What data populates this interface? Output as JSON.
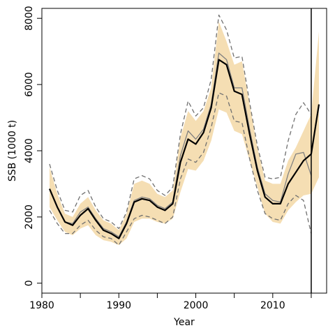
{
  "chart_data": {
    "type": "line",
    "xlabel": "Year",
    "ylabel": "SSB (1000 t)",
    "xlim": [
      1980,
      2017
    ],
    "ylim": [
      -300,
      8300
    ],
    "x_ticks": [
      1980,
      1990,
      2000,
      2010
    ],
    "x_ticks_minor": [
      1985,
      1995,
      2005,
      2015
    ],
    "y_ticks": [
      0,
      2000,
      4000,
      6000,
      8000
    ],
    "grid": false,
    "colors": {
      "band": "#f5deb3",
      "estimate": "#000000",
      "retro": "#808080",
      "retro_ci": "#707070",
      "vline": "#000000"
    },
    "vertical_line_x": 2015,
    "band": {
      "x": [
        1981,
        1982,
        1983,
        1984,
        1985,
        1986,
        1987,
        1988,
        1989,
        1990,
        1991,
        1992,
        1993,
        1994,
        1995,
        1996,
        1997,
        1998,
        1999,
        2000,
        2001,
        2002,
        2003,
        2004,
        2005,
        2006,
        2007,
        2008,
        2009,
        2010,
        2011,
        2012,
        2013,
        2014,
        2015,
        2016
      ],
      "lower": [
        2300,
        1900,
        1550,
        1450,
        1650,
        1750,
        1450,
        1300,
        1250,
        1150,
        1350,
        1850,
        1950,
        1950,
        1850,
        1800,
        1950,
        2750,
        3450,
        3400,
        3700,
        4300,
        5250,
        5150,
        4600,
        4500,
        3700,
        2900,
        2100,
        1850,
        1800,
        2200,
        2450,
        2650,
        2700,
        3200
      ],
      "upper": [
        3500,
        2700,
        2100,
        2000,
        2400,
        2600,
        2200,
        1900,
        1800,
        1600,
        2100,
        3000,
        3100,
        3000,
        2700,
        2600,
        2800,
        4400,
        5200,
        4900,
        5200,
        5900,
        7900,
        7300,
        6600,
        6700,
        5400,
        4100,
        3100,
        3000,
        3000,
        3700,
        4100,
        4600,
        5100,
        7600
      ]
    },
    "series": [
      {
        "x": [
          1981,
          1982,
          1983,
          1984,
          1985,
          1986,
          1987,
          1988,
          1989,
          1990,
          1991,
          1992,
          1993,
          1994,
          1995,
          1996,
          1997,
          1998,
          1999,
          2000,
          2001,
          2002,
          2003,
          2004,
          2005,
          2006,
          2007,
          2008,
          2009,
          2010,
          2011,
          2012,
          2013,
          2014,
          2015,
          2016
        ],
        "values": [
          2850,
          2300,
          1850,
          1750,
          2050,
          2250,
          1900,
          1600,
          1500,
          1350,
          1800,
          2450,
          2550,
          2500,
          2300,
          2200,
          2400,
          3650,
          4350,
          4200,
          4550,
          5300,
          6750,
          6600,
          5800,
          5700,
          4500,
          3400,
          2600,
          2400,
          2400,
          3000,
          3350,
          3700,
          3900,
          5400
        ],
        "style": "estimate"
      },
      {
        "x": [
          1981,
          1982,
          1983,
          1984,
          1985,
          1986,
          1987,
          1988,
          1989,
          1990,
          1991,
          1992,
          1993,
          1994,
          1995,
          1996,
          1997,
          1998,
          1999,
          2000,
          2001,
          2002,
          2003,
          2004,
          2005,
          2006,
          2007,
          2008,
          2009,
          2010,
          2011,
          2012,
          2013,
          2014,
          2015
        ],
        "values": [
          2850,
          2300,
          1850,
          1800,
          2150,
          2300,
          1950,
          1650,
          1550,
          1400,
          1850,
          2500,
          2600,
          2550,
          2350,
          2250,
          2450,
          3850,
          4600,
          4350,
          4650,
          5400,
          6950,
          6750,
          5900,
          5900,
          4650,
          3500,
          2700,
          2500,
          2450,
          3300,
          3900,
          3950,
          3250
        ],
        "style": "retro"
      },
      {
        "x": [
          1981,
          1982,
          1983,
          1984,
          1985,
          1986,
          1987,
          1988,
          1989,
          1990,
          1991,
          1992,
          1993,
          1994,
          1995,
          1996,
          1997,
          1998,
          1999,
          2000,
          2001,
          2002,
          2003,
          2004,
          2005,
          2006,
          2007,
          2008,
          2009,
          2010,
          2011,
          2012,
          2013,
          2014,
          2015
        ],
        "values": [
          3600,
          2800,
          2200,
          2150,
          2650,
          2800,
          2300,
          1950,
          1850,
          1650,
          2150,
          3150,
          3250,
          3150,
          2800,
          2650,
          2900,
          4500,
          5500,
          5050,
          5300,
          6150,
          8100,
          7650,
          6800,
          6850,
          5450,
          4150,
          3200,
          3150,
          3200,
          4300,
          5100,
          5450,
          5100
        ],
        "style": "retro-ci"
      },
      {
        "x": [
          1981,
          1982,
          1983,
          1984,
          1985,
          1986,
          1987,
          1988,
          1989,
          1990,
          1991,
          1992,
          1993,
          1994,
          1995,
          1996,
          1997,
          1998,
          1999,
          2000,
          2001,
          2002,
          2003,
          2004,
          2005,
          2006,
          2007,
          2008,
          2009,
          2010,
          2011,
          2012,
          2013,
          2014,
          2015
        ],
        "values": [
          2200,
          1800,
          1500,
          1500,
          1750,
          1900,
          1600,
          1400,
          1350,
          1150,
          1550,
          1950,
          2050,
          2000,
          1900,
          1800,
          2000,
          3150,
          3750,
          3650,
          3950,
          4700,
          5750,
          5650,
          4900,
          4850,
          3750,
          2800,
          2100,
          1950,
          1900,
          2400,
          2650,
          2500,
          1500
        ],
        "style": "retro-ci"
      }
    ]
  }
}
